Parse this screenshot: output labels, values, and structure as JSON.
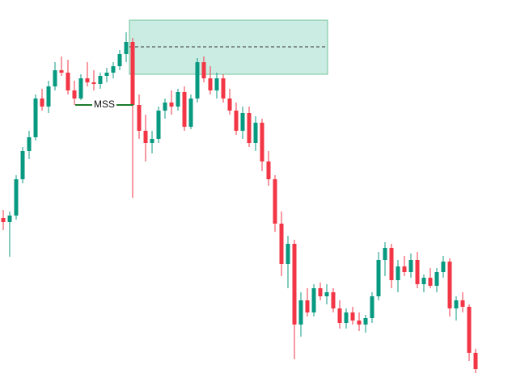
{
  "chart_data": {
    "type": "candlestick",
    "up_color": "#089981",
    "down_color": "#f23645",
    "ylim": [
      0,
      462
    ],
    "open": [
      192,
      187,
      195,
      240,
      275,
      292,
      340,
      330,
      355,
      375,
      372,
      350,
      340,
      365,
      360,
      358,
      368,
      372,
      380,
      395,
      410,
      332,
      300,
      285,
      290,
      325,
      335,
      330,
      348,
      305,
      340,
      385,
      365,
      350,
      365,
      340,
      325,
      300,
      322,
      285,
      310,
      262,
      240,
      185,
      135,
      160,
      60,
      90,
      75,
      105,
      95,
      100,
      80,
      62,
      75,
      65,
      60,
      68,
      95,
      140,
      155,
      115,
      132,
      125,
      140,
      110,
      118,
      108,
      125,
      138,
      80,
      90,
      82,
      25
    ],
    "high": [
      202,
      200,
      245,
      280,
      300,
      345,
      352,
      362,
      385,
      392,
      388,
      362,
      370,
      385,
      375,
      372,
      378,
      385,
      400,
      422,
      415,
      345,
      320,
      300,
      330,
      340,
      350,
      352,
      355,
      345,
      390,
      392,
      380,
      372,
      370,
      352,
      335,
      330,
      330,
      318,
      315,
      275,
      245,
      200,
      170,
      165,
      100,
      105,
      110,
      112,
      110,
      105,
      90,
      80,
      82,
      75,
      72,
      100,
      150,
      162,
      160,
      140,
      145,
      148,
      150,
      122,
      130,
      130,
      145,
      142,
      95,
      100,
      85,
      30
    ],
    "low": [
      177,
      144,
      190,
      235,
      265,
      288,
      325,
      322,
      350,
      368,
      345,
      332,
      338,
      355,
      350,
      352,
      360,
      365,
      375,
      385,
      217,
      290,
      262,
      272,
      285,
      315,
      320,
      325,
      300,
      302,
      335,
      360,
      345,
      340,
      335,
      320,
      295,
      290,
      280,
      275,
      250,
      232,
      175,
      120,
      105,
      17,
      45,
      70,
      70,
      90,
      85,
      75,
      55,
      55,
      60,
      52,
      50,
      62,
      90,
      120,
      105,
      100,
      120,
      118,
      105,
      100,
      105,
      100,
      118,
      70,
      65,
      75,
      15,
      0
    ],
    "close": [
      187,
      195,
      240,
      275,
      292,
      340,
      330,
      355,
      375,
      372,
      350,
      340,
      365,
      360,
      358,
      368,
      372,
      380,
      395,
      410,
      332,
      300,
      285,
      290,
      325,
      335,
      330,
      348,
      305,
      340,
      385,
      365,
      350,
      365,
      340,
      325,
      300,
      322,
      285,
      310,
      262,
      240,
      185,
      135,
      160,
      60,
      90,
      75,
      105,
      95,
      100,
      80,
      62,
      75,
      65,
      60,
      68,
      95,
      140,
      155,
      115,
      132,
      125,
      140,
      110,
      118,
      108,
      125,
      138,
      80,
      90,
      82,
      25,
      5
    ],
    "zone": {
      "high": 437,
      "low": 370,
      "mid": 404,
      "color": "#a8e0d1"
    },
    "annotation": {
      "text": "MSS",
      "value": 332,
      "color": "#1a7a2a"
    }
  }
}
